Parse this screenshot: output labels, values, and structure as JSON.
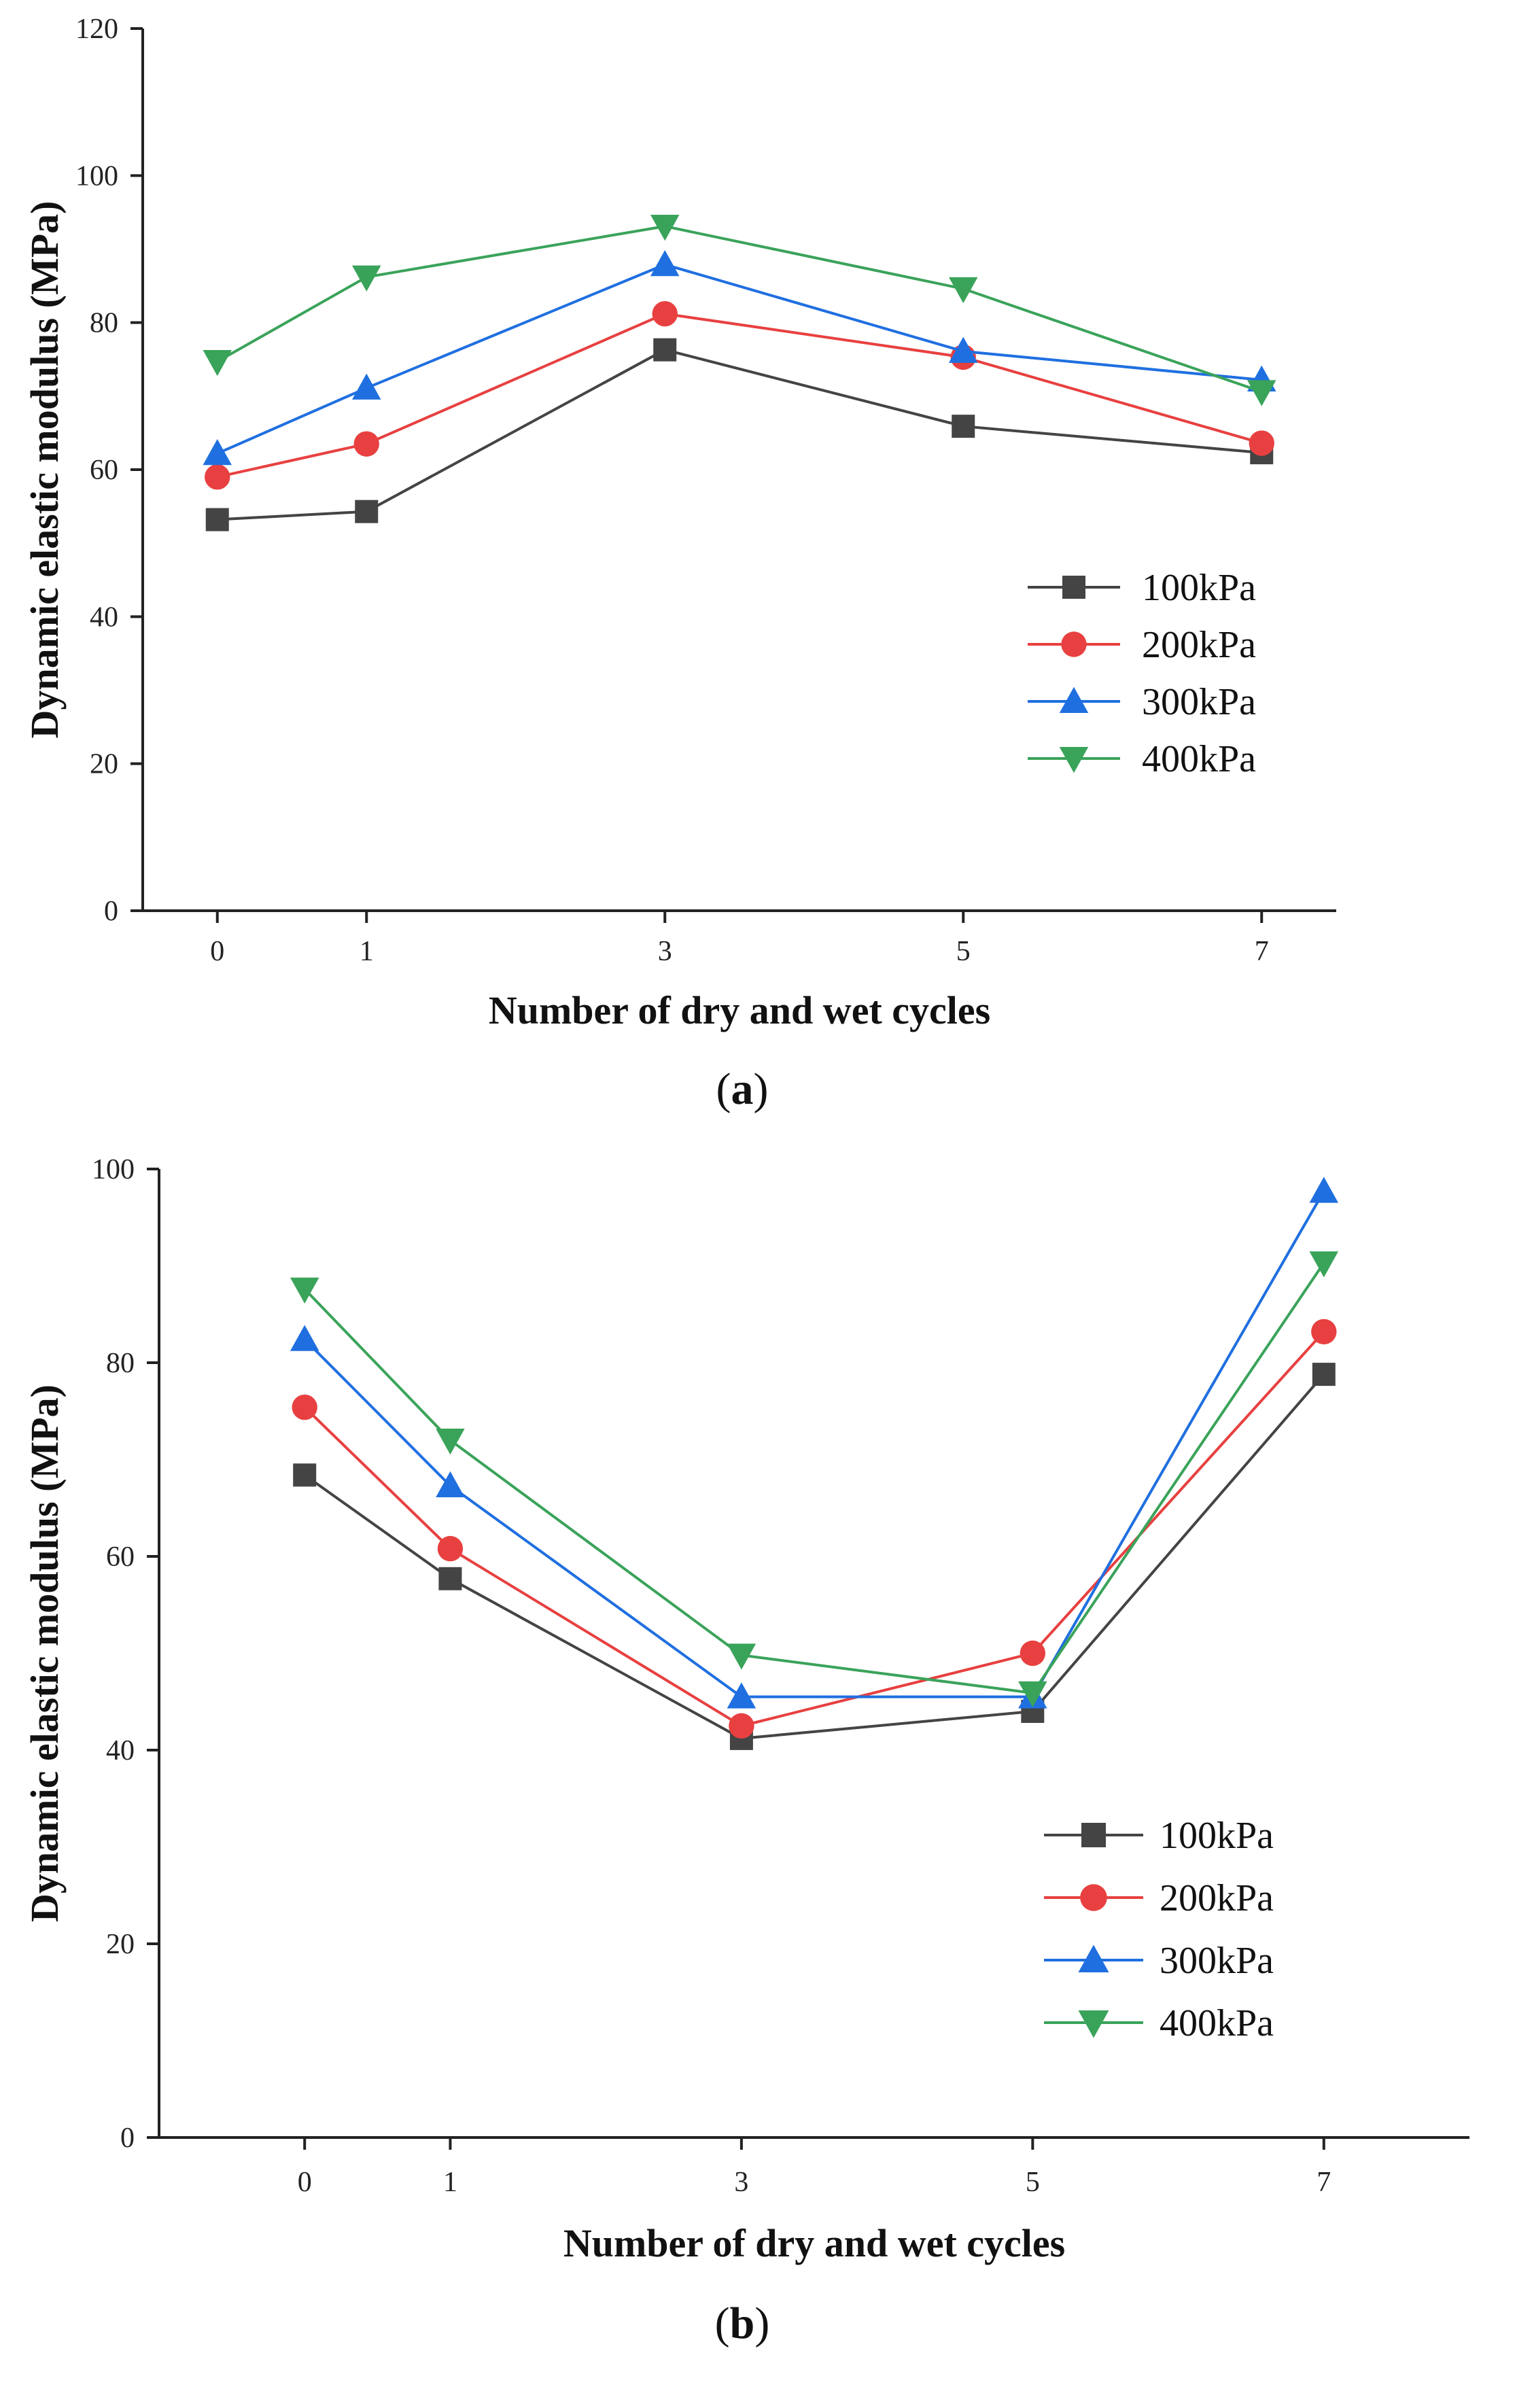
{
  "chart_data": [
    {
      "type": "line",
      "caption": "a",
      "xlabel": "Number of dry and wet cycles",
      "ylabel": "Dynamic elastic modulus (MPa)",
      "x": [
        0,
        1,
        3,
        5,
        7
      ],
      "x_ticks": [
        "0",
        "1",
        "3",
        "5",
        "7"
      ],
      "xlim": [
        -0.5,
        7.5
      ],
      "ylim": [
        0,
        120
      ],
      "y_ticks": [
        "0",
        "20",
        "40",
        "60",
        "80",
        "100",
        "120"
      ],
      "legend_position": "right",
      "series": [
        {
          "name": "100kPa",
          "values": [
            53.2,
            54.3,
            76.3,
            65.9,
            62.3
          ],
          "color": "#444444",
          "marker": "square"
        },
        {
          "name": "200kPa",
          "values": [
            59.0,
            63.5,
            81.2,
            75.3,
            63.6
          ],
          "color": "#e84040",
          "marker": "circle"
        },
        {
          "name": "300kPa",
          "values": [
            62.2,
            71.1,
            87.9,
            76.1,
            72.2
          ],
          "color": "#1f6fe0",
          "marker": "triangle-up"
        },
        {
          "name": "400kPa",
          "values": [
            74.7,
            86.2,
            93.1,
            84.6,
            70.6
          ],
          "color": "#3aa35a",
          "marker": "triangle-down"
        }
      ]
    },
    {
      "type": "line",
      "caption": "b",
      "xlabel": "Number of dry and wet cycles",
      "ylabel": "Dynamic elastic modulus (MPa)",
      "x": [
        0,
        1,
        3,
        5,
        7
      ],
      "x_ticks": [
        "0",
        "1",
        "3",
        "5",
        "7"
      ],
      "xlim": [
        -1,
        8
      ],
      "ylim": [
        0,
        100
      ],
      "y_ticks": [
        "0",
        "20",
        "40",
        "60",
        "80",
        "100"
      ],
      "legend_position": "lower-right",
      "series": [
        {
          "name": "100kPa",
          "values": [
            68.4,
            57.7,
            41.2,
            44.0,
            78.8
          ],
          "color": "#444444",
          "marker": "square"
        },
        {
          "name": "200kPa",
          "values": [
            75.4,
            60.8,
            42.5,
            50.0,
            83.2
          ],
          "color": "#e84040",
          "marker": "circle"
        },
        {
          "name": "300kPa",
          "values": [
            82.4,
            67.3,
            45.5,
            45.5,
            97.7
          ],
          "color": "#1f6fe0",
          "marker": "triangle-up"
        },
        {
          "name": "400kPa",
          "values": [
            87.6,
            72.0,
            49.8,
            45.9,
            90.3
          ],
          "color": "#3aa35a",
          "marker": "triangle-down"
        }
      ]
    }
  ]
}
